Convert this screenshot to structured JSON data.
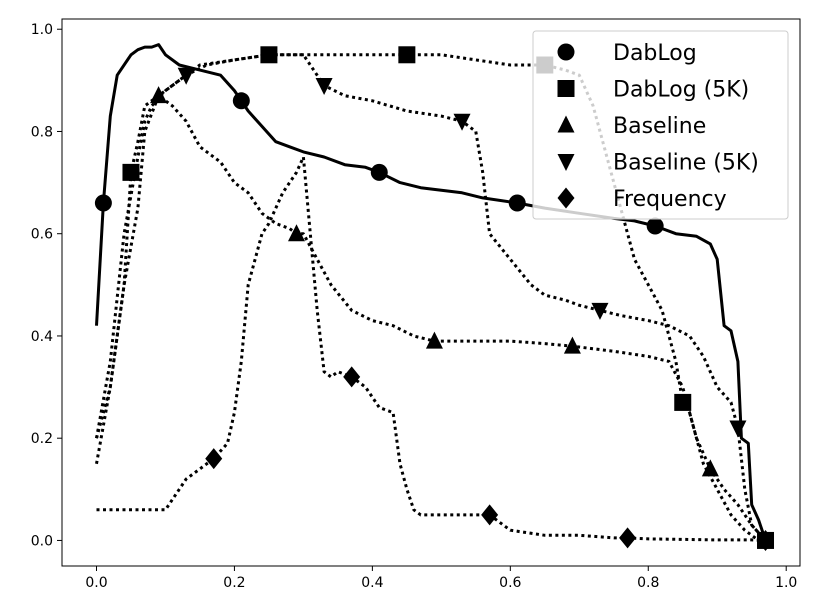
{
  "chart_data": {
    "type": "line",
    "title": "",
    "xlabel": "",
    "ylabel": "",
    "xlim": [
      -0.05,
      1.02
    ],
    "ylim": [
      -0.05,
      1.02
    ],
    "xticks": [
      0.0,
      0.2,
      0.4,
      0.6,
      0.8,
      1.0
    ],
    "yticks": [
      0.0,
      0.2,
      0.4,
      0.6,
      0.8,
      1.0
    ],
    "xtick_labels": [
      "0.0",
      "0.2",
      "0.4",
      "0.6",
      "0.8",
      "1.0"
    ],
    "ytick_labels": [
      "0.0",
      "0.2",
      "0.4",
      "0.6",
      "0.8",
      "1.0"
    ],
    "grid": false,
    "legend_position": "top-right",
    "series": [
      {
        "name": "DabLog",
        "line_style": "solid",
        "marker": "circle",
        "color": "#000000",
        "x": [
          0.0,
          0.01,
          0.02,
          0.03,
          0.05,
          0.06,
          0.07,
          0.08,
          0.09,
          0.1,
          0.12,
          0.15,
          0.18,
          0.2,
          0.22,
          0.24,
          0.26,
          0.28,
          0.3,
          0.33,
          0.36,
          0.39,
          0.41,
          0.44,
          0.47,
          0.5,
          0.53,
          0.56,
          0.61,
          0.65,
          0.7,
          0.75,
          0.78,
          0.81,
          0.84,
          0.87,
          0.89,
          0.9,
          0.91,
          0.92,
          0.93,
          0.935,
          0.945,
          0.95,
          0.96,
          0.97
        ],
        "y": [
          0.42,
          0.66,
          0.83,
          0.91,
          0.95,
          0.96,
          0.965,
          0.965,
          0.97,
          0.95,
          0.93,
          0.92,
          0.91,
          0.88,
          0.84,
          0.81,
          0.78,
          0.77,
          0.76,
          0.75,
          0.735,
          0.73,
          0.72,
          0.7,
          0.69,
          0.685,
          0.68,
          0.67,
          0.66,
          0.65,
          0.64,
          0.63,
          0.625,
          0.615,
          0.6,
          0.595,
          0.58,
          0.55,
          0.42,
          0.41,
          0.35,
          0.2,
          0.19,
          0.07,
          0.04,
          0.0
        ],
        "markers_at_x": [
          0.01,
          0.21,
          0.41,
          0.61,
          0.81,
          0.97
        ]
      },
      {
        "name": "DabLog (5K)",
        "line_style": "dotted",
        "marker": "square",
        "color": "#000000",
        "x": [
          0.0,
          0.02,
          0.04,
          0.05,
          0.06,
          0.07,
          0.1,
          0.15,
          0.2,
          0.25,
          0.3,
          0.35,
          0.4,
          0.45,
          0.5,
          0.55,
          0.6,
          0.65,
          0.68,
          0.7,
          0.72,
          0.74,
          0.76,
          0.78,
          0.8,
          0.82,
          0.83,
          0.84,
          0.85,
          0.86,
          0.87,
          0.88,
          0.9,
          0.92,
          0.94,
          0.95,
          0.96
        ],
        "y": [
          0.2,
          0.3,
          0.5,
          0.72,
          0.78,
          0.85,
          0.88,
          0.93,
          0.94,
          0.95,
          0.95,
          0.95,
          0.95,
          0.95,
          0.95,
          0.94,
          0.93,
          0.93,
          0.92,
          0.91,
          0.85,
          0.75,
          0.65,
          0.55,
          0.5,
          0.45,
          0.4,
          0.35,
          0.27,
          0.25,
          0.2,
          0.15,
          0.1,
          0.05,
          0.02,
          0.01,
          0.0
        ],
        "markers_at_x": [
          0.05,
          0.25,
          0.45,
          0.65,
          0.85,
          0.97
        ]
      },
      {
        "name": "Baseline",
        "line_style": "dotted",
        "marker": "triangle-up",
        "color": "#000000",
        "x": [
          0.0,
          0.02,
          0.04,
          0.06,
          0.07,
          0.09,
          0.11,
          0.13,
          0.15,
          0.18,
          0.2,
          0.22,
          0.24,
          0.26,
          0.28,
          0.29,
          0.3,
          0.32,
          0.34,
          0.37,
          0.4,
          0.43,
          0.46,
          0.49,
          0.55,
          0.6,
          0.65,
          0.69,
          0.75,
          0.8,
          0.83,
          0.85,
          0.87,
          0.89,
          0.91,
          0.93,
          0.95,
          0.97
        ],
        "y": [
          0.15,
          0.3,
          0.5,
          0.65,
          0.8,
          0.87,
          0.85,
          0.82,
          0.77,
          0.74,
          0.7,
          0.68,
          0.64,
          0.62,
          0.61,
          0.6,
          0.6,
          0.55,
          0.5,
          0.45,
          0.43,
          0.42,
          0.4,
          0.39,
          0.39,
          0.39,
          0.385,
          0.38,
          0.37,
          0.36,
          0.35,
          0.3,
          0.2,
          0.14,
          0.1,
          0.07,
          0.03,
          0.0
        ],
        "markers_at_x": [
          0.09,
          0.29,
          0.49,
          0.69,
          0.89
        ]
      },
      {
        "name": "Baseline (5K)",
        "line_style": "dotted",
        "marker": "triangle-down",
        "color": "#000000",
        "x": [
          0.0,
          0.02,
          0.04,
          0.06,
          0.07,
          0.08,
          0.1,
          0.13,
          0.16,
          0.2,
          0.25,
          0.3,
          0.33,
          0.36,
          0.4,
          0.45,
          0.5,
          0.53,
          0.55,
          0.56,
          0.57,
          0.6,
          0.63,
          0.65,
          0.68,
          0.7,
          0.73,
          0.76,
          0.8,
          0.83,
          0.86,
          0.88,
          0.9,
          0.92,
          0.93,
          0.94,
          0.95,
          0.97
        ],
        "y": [
          0.2,
          0.35,
          0.6,
          0.75,
          0.82,
          0.85,
          0.88,
          0.91,
          0.93,
          0.94,
          0.95,
          0.95,
          0.89,
          0.87,
          0.86,
          0.84,
          0.83,
          0.82,
          0.8,
          0.72,
          0.6,
          0.55,
          0.5,
          0.48,
          0.47,
          0.46,
          0.45,
          0.44,
          0.43,
          0.42,
          0.4,
          0.36,
          0.3,
          0.27,
          0.22,
          0.1,
          0.03,
          0.0
        ],
        "markers_at_x": [
          0.13,
          0.33,
          0.53,
          0.73,
          0.93
        ]
      },
      {
        "name": "Frequency",
        "line_style": "dotted",
        "marker": "diamond",
        "color": "#000000",
        "x": [
          0.0,
          0.05,
          0.1,
          0.13,
          0.15,
          0.17,
          0.19,
          0.2,
          0.21,
          0.22,
          0.23,
          0.24,
          0.25,
          0.26,
          0.27,
          0.28,
          0.29,
          0.3,
          0.31,
          0.32,
          0.33,
          0.34,
          0.35,
          0.37,
          0.39,
          0.41,
          0.43,
          0.44,
          0.45,
          0.46,
          0.47,
          0.5,
          0.53,
          0.55,
          0.57,
          0.6,
          0.65,
          0.7,
          0.75,
          0.77,
          0.8,
          0.85,
          0.9,
          0.95,
          0.97
        ],
        "y": [
          0.06,
          0.06,
          0.06,
          0.12,
          0.14,
          0.16,
          0.19,
          0.25,
          0.35,
          0.5,
          0.55,
          0.6,
          0.62,
          0.65,
          0.68,
          0.7,
          0.72,
          0.75,
          0.6,
          0.45,
          0.33,
          0.32,
          0.33,
          0.32,
          0.3,
          0.26,
          0.25,
          0.15,
          0.1,
          0.06,
          0.05,
          0.05,
          0.05,
          0.05,
          0.05,
          0.02,
          0.01,
          0.01,
          0.005,
          0.005,
          0.003,
          0.002,
          0.001,
          0.001,
          0.0
        ],
        "markers_at_x": [
          0.17,
          0.37,
          0.57,
          0.77,
          0.97
        ]
      }
    ]
  }
}
